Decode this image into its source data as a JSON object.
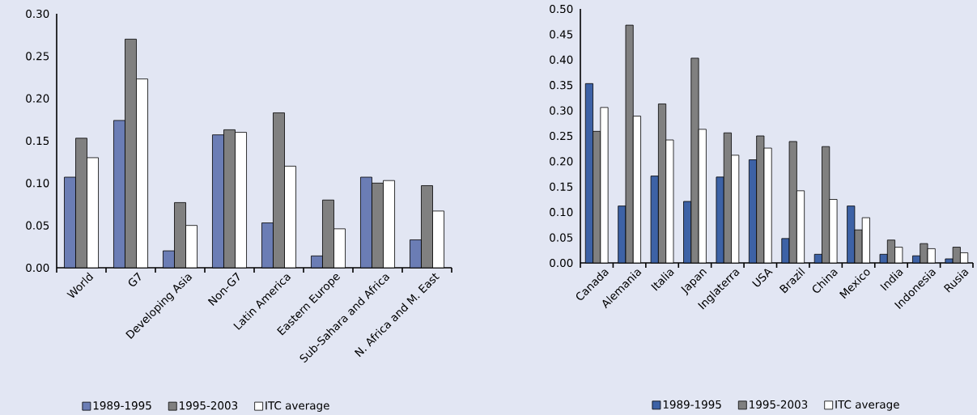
{
  "chart_data": [
    {
      "type": "bar",
      "categories": [
        "World",
        "G7",
        "Developing Asia",
        "Non-G7",
        "Latin America",
        "Eastern Europe",
        "Sub-Sahara and Africa",
        "N. Africa and M. East"
      ],
      "series": [
        {
          "name": "1989-1995",
          "color": "#6b7db5",
          "values": [
            0.107,
            0.174,
            0.02,
            0.157,
            0.053,
            0.014,
            0.107,
            0.033
          ]
        },
        {
          "name": "1995-2003",
          "color": "#808080",
          "values": [
            0.153,
            0.27,
            0.077,
            0.163,
            0.183,
            0.08,
            0.1,
            0.097
          ]
        },
        {
          "name": "ITC average",
          "color": "#ffffff",
          "values": [
            0.13,
            0.223,
            0.05,
            0.16,
            0.12,
            0.046,
            0.103,
            0.067
          ]
        }
      ],
      "ylim": [
        0,
        0.3
      ],
      "yticks": [
        {
          "value": 0,
          "label": "0.00"
        },
        {
          "value": 0.05,
          "label": "0.05"
        },
        {
          "value": 0.1,
          "label": "0.10"
        },
        {
          "value": 0.15,
          "label": "0.15"
        },
        {
          "value": 0.2,
          "label": "0.20"
        },
        {
          "value": 0.25,
          "label": "0.25"
        },
        {
          "value": 0.3,
          "label": "0.30"
        }
      ],
      "legend": "bottom"
    },
    {
      "type": "bar",
      "categories": [
        "Canada",
        "Alemania",
        "Italia",
        "Japan",
        "Inglaterra",
        "USA",
        "Brazil",
        "China",
        "Mexico",
        "India",
        "Indonesia",
        "Rusia"
      ],
      "series": [
        {
          "name": "1989-1995",
          "color": "#3d62a6",
          "values": [
            0.353,
            0.112,
            0.171,
            0.121,
            0.169,
            0.203,
            0.048,
            0.017,
            0.112,
            0.017,
            0.014,
            0.008
          ]
        },
        {
          "name": "1995-2003",
          "color": "#808080",
          "values": [
            0.259,
            0.468,
            0.313,
            0.403,
            0.256,
            0.25,
            0.239,
            0.229,
            0.065,
            0.045,
            0.038,
            0.031
          ]
        },
        {
          "name": "ITC average",
          "color": "#ffffff",
          "values": [
            0.306,
            0.289,
            0.242,
            0.263,
            0.212,
            0.226,
            0.142,
            0.125,
            0.089,
            0.031,
            0.028,
            0.02
          ]
        }
      ],
      "ylim": [
        0,
        0.5
      ],
      "yticks": [
        {
          "value": 0,
          "label": "0.00"
        },
        {
          "value": 0.05,
          "label": "0.05"
        },
        {
          "value": 0.1,
          "label": "0.10"
        },
        {
          "value": 0.15,
          "label": "0.15"
        },
        {
          "value": 0.2,
          "label": "0.20"
        },
        {
          "value": 0.25,
          "label": "0.25"
        },
        {
          "value": 0.3,
          "label": "0.30"
        },
        {
          "value": 0.35,
          "label": "0.35"
        },
        {
          "value": 0.4,
          "label": "0.40"
        },
        {
          "value": 0.45,
          "label": "0.45"
        },
        {
          "value": 0.5,
          "label": "0.50"
        }
      ],
      "legend": "bottom"
    }
  ]
}
